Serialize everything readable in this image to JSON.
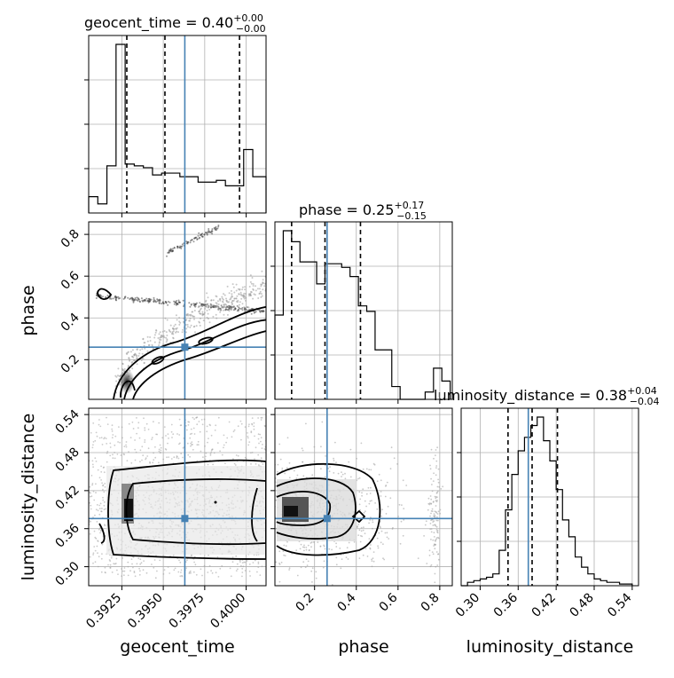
{
  "chart_data": [
    {
      "type": "histogram",
      "panel": "geocent_time marginal",
      "title_main": "geocent_time = 0.40",
      "title_sup": "+0.00",
      "title_sub": "−0.00",
      "xlim": [
        0.3905,
        0.4012
      ],
      "bins": [
        0.3905,
        0.39105,
        0.3916,
        0.39215,
        0.3927,
        0.39325,
        0.3938,
        0.39435,
        0.3949,
        0.39545,
        0.396,
        0.39655,
        0.3971,
        0.39765,
        0.3982,
        0.39875,
        0.3993,
        0.39985,
        0.4004,
        0.40095,
        0.4012
      ],
      "counts": [
        0.09,
        0.05,
        0.26,
        0.93,
        0.27,
        0.26,
        0.25,
        0.21,
        0.22,
        0.22,
        0.2,
        0.2,
        0.17,
        0.17,
        0.18,
        0.15,
        0.15,
        0.35,
        0.2,
        0.2
      ],
      "quantiles": [
        0.3928,
        0.3951,
        0.3996
      ],
      "truth": 0.3963
    },
    {
      "type": "histogram",
      "panel": "phase marginal",
      "title_main": "phase = 0.25",
      "title_sup": "+0.17",
      "title_sub": "−0.15",
      "xlim": [
        0.01,
        0.86
      ],
      "bins": [
        0.01,
        0.05,
        0.09,
        0.13,
        0.17,
        0.21,
        0.25,
        0.29,
        0.33,
        0.37,
        0.41,
        0.45,
        0.49,
        0.53,
        0.57,
        0.61,
        0.65,
        0.69,
        0.73,
        0.77,
        0.81,
        0.85
      ],
      "counts": [
        0.46,
        0.92,
        0.86,
        0.75,
        0.75,
        0.63,
        0.74,
        0.74,
        0.72,
        0.67,
        0.51,
        0.48,
        0.27,
        0.27,
        0.07,
        0.0,
        0.0,
        0.0,
        0.04,
        0.17,
        0.1
      ],
      "quantiles": [
        0.09,
        0.25,
        0.42
      ],
      "truth": 0.26
    },
    {
      "type": "histogram",
      "panel": "luminosity_distance marginal",
      "title_main": "luminosity_distance = 0.38",
      "title_sup": "+0.04",
      "title_sub": "−0.04",
      "xlim": [
        0.27,
        0.55
      ],
      "bins": [
        0.27,
        0.28,
        0.29,
        0.3,
        0.31,
        0.32,
        0.33,
        0.34,
        0.35,
        0.36,
        0.37,
        0.38,
        0.39,
        0.4,
        0.41,
        0.42,
        0.43,
        0.44,
        0.45,
        0.46,
        0.47,
        0.48,
        0.49,
        0.5,
        0.51,
        0.52,
        0.53,
        0.54
      ],
      "counts": [
        0.0,
        0.02,
        0.03,
        0.04,
        0.05,
        0.07,
        0.21,
        0.45,
        0.66,
        0.8,
        0.88,
        0.95,
        1.0,
        0.86,
        0.74,
        0.57,
        0.39,
        0.29,
        0.17,
        0.11,
        0.07,
        0.04,
        0.03,
        0.02,
        0.02,
        0.01,
        0.01
      ],
      "quantiles": [
        0.344,
        0.382,
        0.422
      ],
      "truth": 0.376
    },
    {
      "type": "contour",
      "panel": "phase vs geocent_time",
      "x_param": "geocent_time",
      "y_param": "phase",
      "xlim": [
        0.3905,
        0.4012
      ],
      "ylim": [
        0.01,
        0.86
      ],
      "truth": [
        0.3963,
        0.26
      ]
    },
    {
      "type": "contour",
      "panel": "luminosity_distance vs geocent_time",
      "x_param": "geocent_time",
      "y_param": "luminosity_distance",
      "xlim": [
        0.3905,
        0.4012
      ],
      "ylim": [
        0.27,
        0.55
      ],
      "truth": [
        0.3963,
        0.376
      ]
    },
    {
      "type": "contour",
      "panel": "luminosity_distance vs phase",
      "x_param": "phase",
      "y_param": "luminosity_distance",
      "xlim": [
        0.01,
        0.86
      ],
      "ylim": [
        0.27,
        0.55
      ],
      "truth": [
        0.26,
        0.376
      ]
    }
  ],
  "axes": {
    "geocent_time": {
      "label": "geocent_time",
      "ticks": [
        0.3925,
        0.395,
        0.3975,
        0.4
      ],
      "tick_labels": [
        "0.3925",
        "0.3950",
        "0.3975",
        "0.4000"
      ]
    },
    "phase": {
      "label": "phase",
      "ticks": [
        0.2,
        0.4,
        0.6,
        0.8
      ],
      "tick_labels": [
        "0.2",
        "0.4",
        "0.6",
        "0.8"
      ]
    },
    "luminosity_distance": {
      "label": "luminosity_distance",
      "ticks": [
        0.3,
        0.36,
        0.42,
        0.48,
        0.54
      ],
      "tick_labels": [
        "0.30",
        "0.36",
        "0.42",
        "0.48",
        "0.54"
      ]
    }
  },
  "colors": {
    "truth": "#4682b4",
    "contour": "#000000",
    "grid": "#b0b0b0",
    "samples": "#9a9a9a"
  },
  "labels": {
    "geocent_time": "geocent_time",
    "phase": "phase",
    "luminosity_distance": "luminosity_distance"
  }
}
